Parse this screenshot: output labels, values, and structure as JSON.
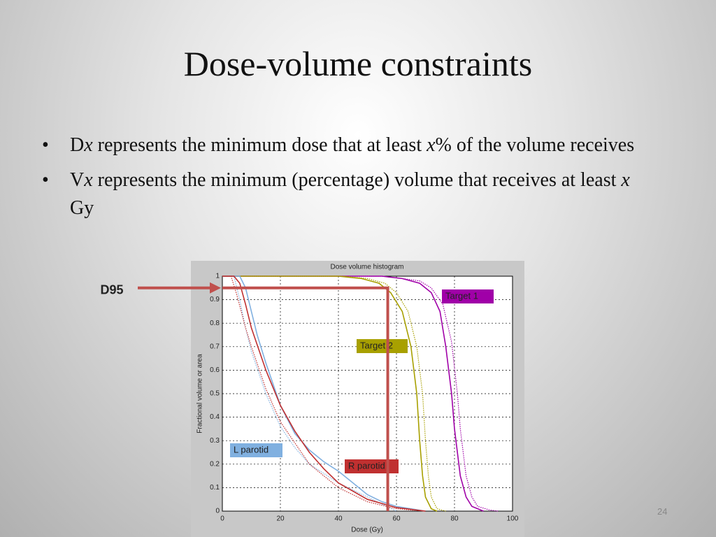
{
  "title": "Dose-volume constraints",
  "bullets": [
    [
      {
        "text": "D"
      },
      {
        "text": "x",
        "italic": true
      },
      {
        "text": " represents the minimum dose that at least "
      },
      {
        "text": "x",
        "italic": true
      },
      {
        "text": "% of the volume receives"
      }
    ],
    [
      {
        "text": "V"
      },
      {
        "text": "x",
        "italic": true
      },
      {
        "text": " represents the minimum (percentage) volume that receives at least "
      },
      {
        "text": "x",
        "italic": true
      },
      {
        "text": " Gy"
      }
    ]
  ],
  "slide_number": "24",
  "chart_data": {
    "type": "line",
    "title": "Dose volume histogram",
    "x_label": "Dose (Gy)",
    "y_label": "Fractional volume or area",
    "xlim": [
      0,
      100
    ],
    "ylim": [
      0,
      1
    ],
    "xticks": [
      0,
      20,
      40,
      60,
      80,
      100
    ],
    "yticks": [
      0,
      0.1,
      0.2,
      0.3,
      0.4,
      0.5,
      0.6,
      0.7,
      0.8,
      0.9,
      1
    ],
    "grid": true,
    "series": [
      {
        "name": "Target 1",
        "color": "#a000a8",
        "style": "solid",
        "x": [
          0,
          55,
          62,
          68,
          72,
          75,
          77,
          79,
          80,
          82,
          84,
          86,
          90
        ],
        "values": [
          1,
          1,
          0.99,
          0.97,
          0.93,
          0.85,
          0.7,
          0.5,
          0.35,
          0.15,
          0.06,
          0.02,
          0
        ]
      },
      {
        "color": "#a000a8",
        "style": "dotted",
        "x": [
          0,
          55,
          62,
          68,
          72,
          76,
          79,
          81,
          82,
          84,
          86,
          88,
          92,
          95
        ],
        "values": [
          1,
          1,
          0.99,
          0.98,
          0.95,
          0.88,
          0.72,
          0.5,
          0.35,
          0.15,
          0.06,
          0.02,
          0.005,
          0
        ]
      },
      {
        "name": "Target 2",
        "color": "#a8a000",
        "style": "solid",
        "x": [
          0,
          40,
          48,
          54,
          58,
          62,
          65,
          67,
          68,
          69,
          70,
          72,
          74
        ],
        "values": [
          1,
          1,
          0.99,
          0.97,
          0.93,
          0.85,
          0.7,
          0.5,
          0.3,
          0.15,
          0.06,
          0.01,
          0
        ]
      },
      {
        "color": "#a8a000",
        "style": "dotted",
        "x": [
          0,
          42,
          50,
          56,
          60,
          64,
          67,
          69,
          70,
          71,
          72,
          74,
          77
        ],
        "values": [
          1,
          1,
          0.99,
          0.97,
          0.93,
          0.85,
          0.7,
          0.5,
          0.3,
          0.15,
          0.06,
          0.01,
          0
        ]
      },
      {
        "name": "L parotid",
        "color": "#80b0e0",
        "style": "solid",
        "x": [
          0,
          6,
          8,
          10,
          12,
          15,
          20,
          25,
          30,
          35,
          40,
          45,
          50,
          55,
          60,
          70
        ],
        "values": [
          1,
          1,
          0.95,
          0.85,
          0.75,
          0.63,
          0.45,
          0.33,
          0.26,
          0.21,
          0.17,
          0.12,
          0.07,
          0.04,
          0.02,
          0
        ]
      },
      {
        "color": "#80b0e0",
        "style": "dotted",
        "x": [
          0,
          4,
          6,
          8,
          10,
          15,
          20,
          25,
          30,
          40,
          50,
          60
        ],
        "values": [
          1,
          1,
          0.9,
          0.78,
          0.68,
          0.5,
          0.36,
          0.27,
          0.2,
          0.12,
          0.06,
          0
        ]
      },
      {
        "name": "R parotid",
        "color": "#c03030",
        "style": "solid",
        "x": [
          0,
          4,
          6,
          8,
          10,
          15,
          20,
          25,
          30,
          35,
          40,
          50,
          60,
          70
        ],
        "values": [
          1,
          1,
          0.97,
          0.88,
          0.78,
          0.6,
          0.45,
          0.34,
          0.25,
          0.18,
          0.12,
          0.05,
          0.015,
          0
        ]
      },
      {
        "color": "#c03030",
        "style": "dotted",
        "x": [
          0,
          3,
          5,
          8,
          10,
          15,
          20,
          30,
          40,
          50,
          60,
          70
        ],
        "values": [
          1,
          1,
          0.92,
          0.78,
          0.7,
          0.52,
          0.38,
          0.2,
          0.1,
          0.04,
          0.01,
          0
        ]
      }
    ],
    "annotation": {
      "label": "D95",
      "volume": 0.95,
      "dose": 57,
      "color": "#c0504d"
    }
  }
}
